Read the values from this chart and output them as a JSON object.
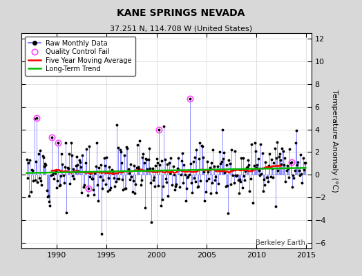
{
  "title": "KANE SPRINGS NEVADA",
  "subtitle": "37.251 N, 114.708 W (United States)",
  "ylabel": "Temperature Anomaly (°C)",
  "watermark": "Berkeley Earth",
  "xlim": [
    1986.5,
    2015.5
  ],
  "ylim": [
    -6.5,
    12.5
  ],
  "yticks": [
    -6,
    -4,
    -2,
    0,
    2,
    4,
    6,
    8,
    10,
    12
  ],
  "xticks": [
    1990,
    1995,
    2000,
    2005,
    2010,
    2015
  ],
  "bg_color": "#d8d8d8",
  "plot_bg_color": "#ffffff",
  "raw_line_color": "#6666ff",
  "raw_dot_color": "#000000",
  "qc_fail_color": "#ff44ff",
  "moving_avg_color": "#ff0000",
  "trend_color": "#00bb00",
  "seed": 12
}
